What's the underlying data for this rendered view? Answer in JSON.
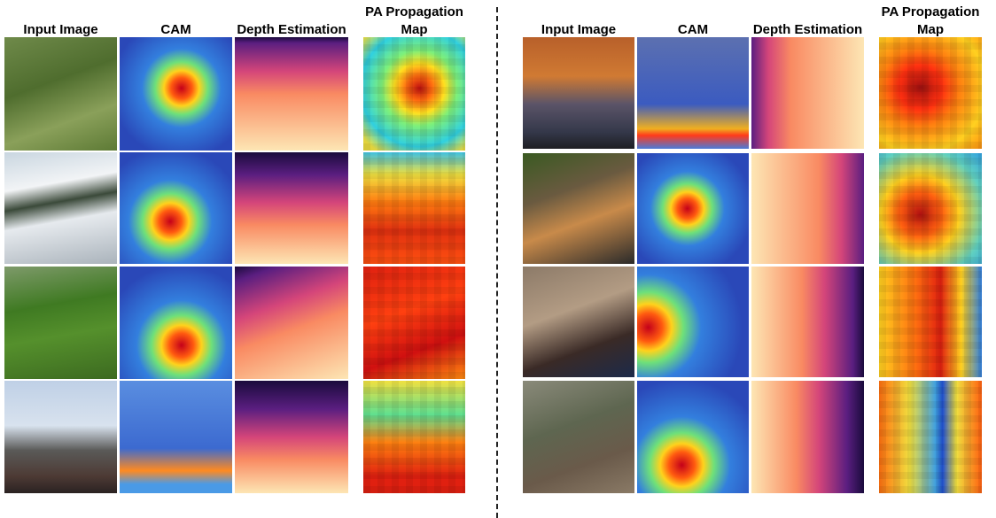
{
  "panels": [
    {
      "headers": [
        "Input Image",
        "CAM",
        "Depth Estimation",
        "PA Propagation Map"
      ]
    },
    {
      "headers": [
        "Input Image",
        "CAM",
        "Depth Estimation",
        "PA Propagation Map"
      ]
    }
  ]
}
